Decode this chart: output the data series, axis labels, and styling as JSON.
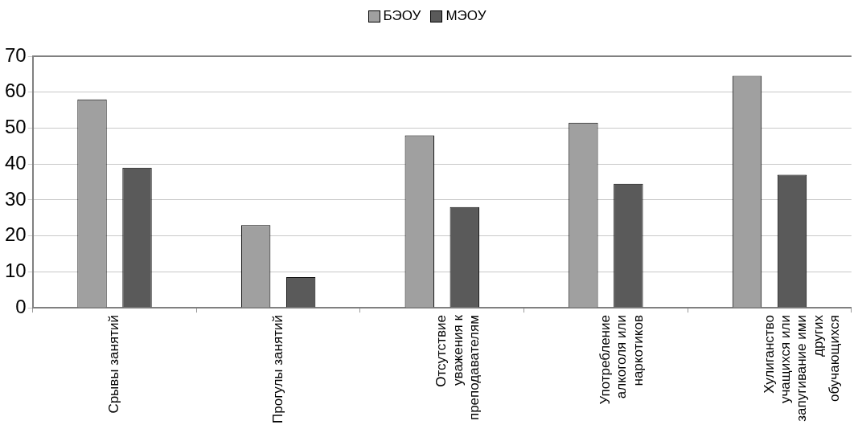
{
  "chart_data": {
    "type": "bar",
    "categories": [
      "Срывы занятий",
      "Прогулы занятий",
      "Отсутствие уважения к преподавателям",
      "Употребление алкоголя или наркотиков",
      "Хулиганство учащихся или запугивание ими других обучающихся"
    ],
    "series": [
      {
        "name": "БЭОУ",
        "color": "#a0a0a0",
        "values": [
          58,
          23,
          48,
          51.5,
          64.5
        ]
      },
      {
        "name": "МЭОУ",
        "color": "#5a5a5a",
        "values": [
          39,
          8.5,
          28,
          34.5,
          37
        ]
      }
    ],
    "ylim": [
      0,
      70
    ],
    "yticks": [
      0,
      10,
      20,
      30,
      40,
      50,
      60,
      70
    ],
    "grid": "y",
    "legend": "top"
  }
}
